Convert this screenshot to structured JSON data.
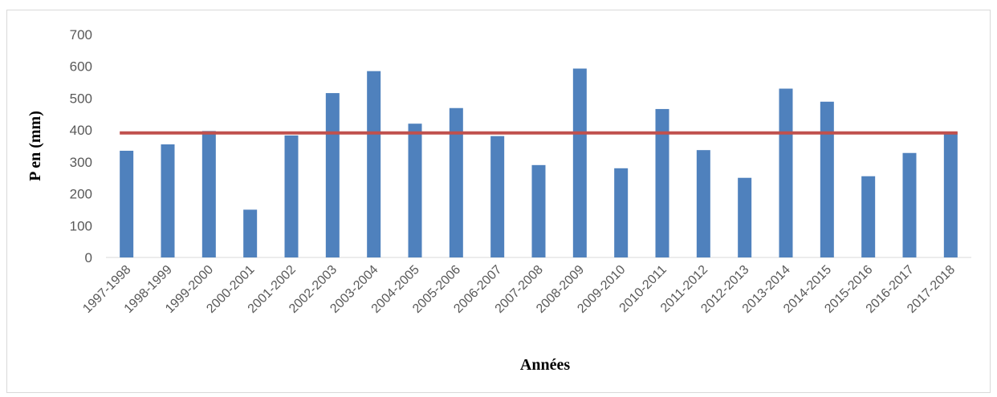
{
  "chart_data": {
    "type": "bar",
    "title": "",
    "xlabel": "Années",
    "ylabel": "P en (mm)",
    "ylim": [
      0,
      700
    ],
    "yticks": [
      0,
      100,
      200,
      300,
      400,
      500,
      600,
      700
    ],
    "grid": false,
    "legend": "none",
    "categories": [
      "1997-1998",
      "1998-1999",
      "1999-2000",
      "2000-2001",
      "2001-2002",
      "2002-2003",
      "2003-2004",
      "2004-2005",
      "2005-2006",
      "2006-2007",
      "2007-2008",
      "2008-2009",
      "2009-2010",
      "2010-2011",
      "2011-2012",
      "2012-2013",
      "2013-2014",
      "2014-2015",
      "2015-2016",
      "2016-2017",
      "2017-2018"
    ],
    "series": [
      {
        "values": [
          335,
          355,
          397,
          150,
          383,
          516,
          585,
          420,
          469,
          381,
          290,
          593,
          280,
          466,
          337,
          250,
          530,
          489,
          255,
          328,
          393
        ],
        "color": "#4f81bd"
      }
    ],
    "reference_line": {
      "value": 391,
      "color": "#c0504d"
    }
  }
}
